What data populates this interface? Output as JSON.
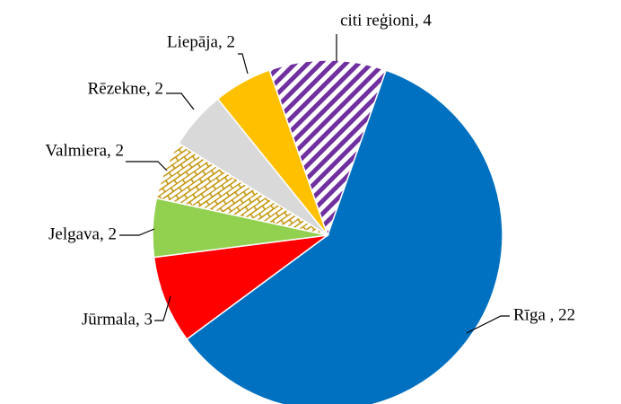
{
  "chart_data": {
    "type": "pie",
    "values": [
      22,
      3,
      2,
      2,
      2,
      2,
      4
    ],
    "value_labels": [
      "Rīga , 22",
      "Jūrmala, 3",
      "Jelgava, 2",
      "Valmiera, 2",
      "Rēzekne, 2",
      "Liepāja, 2",
      "citi reģioni, 4"
    ],
    "colors": [
      "#0070c0",
      "#ff0000",
      "#92d050",
      "#bf9000",
      "#d9d9d9",
      "#ffc000",
      "#7030a0"
    ],
    "patterns": [
      null,
      null,
      null,
      "brick",
      null,
      null,
      "stripes"
    ]
  }
}
